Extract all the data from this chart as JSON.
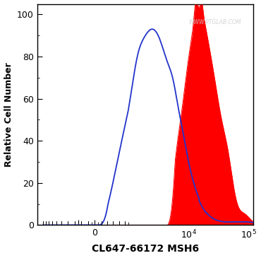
{
  "title": "",
  "xlabel": "CL647-66172 MSH6",
  "ylabel": "Relative Cell Number",
  "watermark": "WWW.PTGLAB.COM",
  "ylim": [
    0,
    105
  ],
  "yticks": [
    0,
    20,
    40,
    60,
    80,
    100
  ],
  "blue_color": "#2233cc",
  "red_color": "#ff0000",
  "background_color": "#ffffff",
  "linthresh": 1000,
  "xlim": [
    -2500,
    120000
  ]
}
